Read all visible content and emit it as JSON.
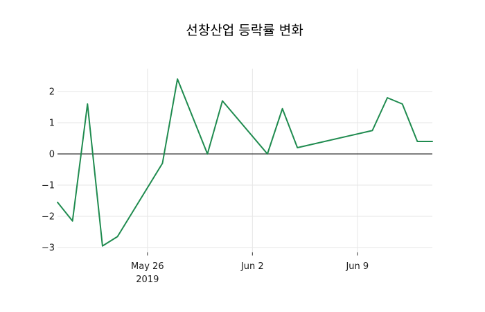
{
  "chart_data": {
    "type": "line",
    "title": "선창산업 등락률 변화",
    "xlabel": "",
    "ylabel": "",
    "xlim": [
      "2019-05-20",
      "2019-06-14"
    ],
    "ylim": [
      -3.16,
      2.73
    ],
    "grid": true,
    "legend": "none",
    "zero_line": true,
    "series": [
      {
        "points": [
          {
            "date": "2019-05-20",
            "value": -1.55
          },
          {
            "date": "2019-05-21",
            "value": -2.15
          },
          {
            "date": "2019-05-22",
            "value": 1.6
          },
          {
            "date": "2019-05-23",
            "value": -2.95
          },
          {
            "date": "2019-05-24",
            "value": -2.65
          },
          {
            "date": "2019-05-27",
            "value": -0.3
          },
          {
            "date": "2019-05-28",
            "value": 2.4
          },
          {
            "date": "2019-05-30",
            "value": 0.0
          },
          {
            "date": "2019-05-31",
            "value": 1.7
          },
          {
            "date": "2019-06-03",
            "value": 0.0
          },
          {
            "date": "2019-06-04",
            "value": 1.45
          },
          {
            "date": "2019-06-05",
            "value": 0.2
          },
          {
            "date": "2019-06-10",
            "value": 0.75
          },
          {
            "date": "2019-06-11",
            "value": 1.8
          },
          {
            "date": "2019-06-12",
            "value": 1.6
          },
          {
            "date": "2019-06-13",
            "value": 0.4
          },
          {
            "date": "2019-06-14",
            "value": 0.4
          }
        ]
      }
    ],
    "x_ticks": [
      {
        "label": "May 26",
        "year_label": "2019",
        "date": "2019-05-26"
      },
      {
        "label": "Jun 2",
        "year_label": "",
        "date": "2019-06-02"
      },
      {
        "label": "Jun 9",
        "year_label": "",
        "date": "2019-06-09"
      }
    ],
    "y_ticks": [
      {
        "label": "2",
        "value": 2
      },
      {
        "label": "1",
        "value": 1
      },
      {
        "label": "0",
        "value": 0
      },
      {
        "label": "−1",
        "value": -1
      },
      {
        "label": "−2",
        "value": -2
      },
      {
        "label": "−3",
        "value": -3
      }
    ],
    "colors": {
      "line": "#1f8b4f",
      "grid": "#e6e6e6",
      "zero_line": "#333333",
      "tick_mark": "#333333",
      "text": "#1a1a1a",
      "background": "#ffffff"
    }
  }
}
